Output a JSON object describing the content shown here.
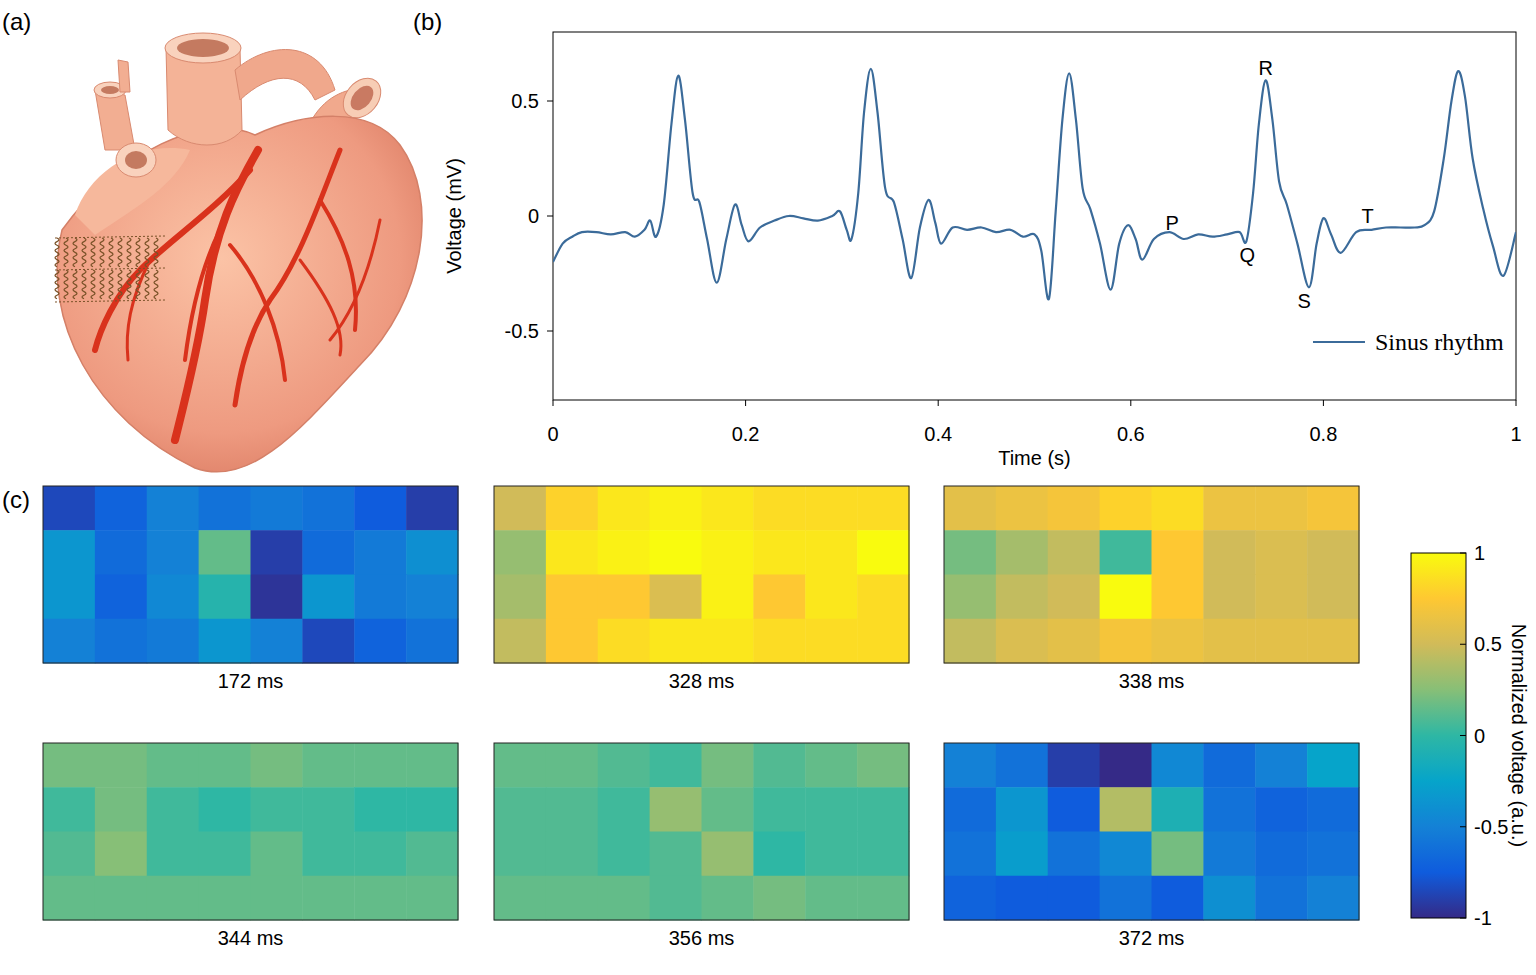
{
  "illustration": {
    "panel": "(a)"
  },
  "chart_data": [
    {
      "type": "line",
      "panel": "(b)",
      "x_label": "Time (s)",
      "y_label": "Voltage (mV)",
      "x": [
        0.0,
        0.01,
        0.02,
        0.03,
        0.045,
        0.06,
        0.075,
        0.085,
        0.095,
        0.101,
        0.107,
        0.115,
        0.123,
        0.13,
        0.137,
        0.145,
        0.152,
        0.16,
        0.17,
        0.18,
        0.189,
        0.196,
        0.203,
        0.215,
        0.23,
        0.245,
        0.26,
        0.275,
        0.29,
        0.298,
        0.305,
        0.31,
        0.317,
        0.323,
        0.33,
        0.337,
        0.345,
        0.354,
        0.363,
        0.372,
        0.381,
        0.39,
        0.397,
        0.403,
        0.415,
        0.43,
        0.445,
        0.46,
        0.475,
        0.488,
        0.5,
        0.507,
        0.515,
        0.522,
        0.529,
        0.536,
        0.543,
        0.55,
        0.558,
        0.568,
        0.579,
        0.588,
        0.597,
        0.605,
        0.612,
        0.624,
        0.64,
        0.655,
        0.67,
        0.685,
        0.7,
        0.713,
        0.72,
        0.727,
        0.733,
        0.74,
        0.747,
        0.754,
        0.762,
        0.773,
        0.785,
        0.793,
        0.8,
        0.808,
        0.818,
        0.834,
        0.85,
        0.865,
        0.88,
        0.895,
        0.905,
        0.915,
        0.925,
        0.933,
        0.94,
        0.947,
        0.955,
        0.966,
        0.976,
        0.987,
        1.0
      ],
      "series": [
        {
          "name": "Sinus rhythm",
          "color": "#3b6b9a",
          "values": [
            -0.2,
            -0.12,
            -0.09,
            -0.07,
            -0.07,
            -0.08,
            -0.07,
            -0.09,
            -0.06,
            -0.02,
            -0.09,
            0.05,
            0.4,
            0.61,
            0.42,
            0.1,
            0.06,
            -0.1,
            -0.29,
            -0.1,
            0.05,
            -0.04,
            -0.11,
            -0.05,
            -0.02,
            0.0,
            -0.01,
            -0.02,
            0.0,
            0.02,
            -0.06,
            -0.1,
            0.1,
            0.45,
            0.64,
            0.45,
            0.12,
            0.06,
            -0.1,
            -0.27,
            -0.05,
            0.07,
            -0.03,
            -0.12,
            -0.05,
            -0.06,
            -0.05,
            -0.07,
            -0.06,
            -0.09,
            -0.08,
            -0.15,
            -0.36,
            0.02,
            0.42,
            0.62,
            0.42,
            0.12,
            0.03,
            -0.12,
            -0.32,
            -0.12,
            -0.04,
            -0.1,
            -0.19,
            -0.1,
            -0.07,
            -0.1,
            -0.08,
            -0.09,
            -0.08,
            -0.07,
            -0.11,
            0.1,
            0.4,
            0.59,
            0.42,
            0.15,
            0.05,
            -0.12,
            -0.31,
            -0.12,
            -0.01,
            -0.08,
            -0.16,
            -0.07,
            -0.06,
            -0.05,
            -0.05,
            -0.05,
            -0.04,
            0.02,
            0.25,
            0.5,
            0.63,
            0.52,
            0.25,
            0.03,
            -0.13,
            -0.26,
            -0.07
          ]
        }
      ],
      "xlim": [
        0,
        1
      ],
      "xticks": [
        0,
        0.2,
        0.4,
        0.6,
        0.8,
        1
      ],
      "ylim": [
        -0.8,
        0.8
      ],
      "yticks": [
        -0.5,
        0,
        0.5
      ],
      "grid": false,
      "legend": "lower right",
      "annotations": [
        {
          "text": "P",
          "x": 0.643,
          "y": -0.03
        },
        {
          "text": "Q",
          "x": 0.721,
          "y": -0.17
        },
        {
          "text": "R",
          "x": 0.74,
          "y": 0.645
        },
        {
          "text": "S",
          "x": 0.78,
          "y": -0.37
        },
        {
          "text": "T",
          "x": 0.846,
          "y": 0.0
        }
      ]
    },
    {
      "type": "heatmap",
      "panel": "(c)",
      "colorbar_label": "Normalized voltage (a.u.)",
      "zlim": [
        -1,
        1
      ],
      "zticks": [
        -1,
        -0.5,
        0,
        0.5,
        1
      ],
      "panels": [
        {
          "title": "172 ms",
          "cells": [
            [
              -0.85,
              -0.7,
              -0.5,
              -0.6,
              -0.55,
              -0.6,
              -0.75,
              -0.9
            ],
            [
              -0.35,
              -0.65,
              -0.5,
              0.15,
              -0.9,
              -0.65,
              -0.55,
              -0.4
            ],
            [
              -0.35,
              -0.7,
              -0.45,
              -0.05,
              -0.95,
              -0.35,
              -0.55,
              -0.5
            ],
            [
              -0.5,
              -0.6,
              -0.55,
              -0.35,
              -0.5,
              -0.85,
              -0.7,
              -0.6
            ]
          ]
        },
        {
          "title": "328 ms",
          "cells": [
            [
              0.5,
              0.8,
              0.9,
              0.95,
              0.9,
              0.85,
              0.85,
              0.85
            ],
            [
              0.3,
              0.9,
              0.95,
              1.0,
              0.95,
              0.9,
              0.9,
              1.0
            ],
            [
              0.35,
              0.75,
              0.75,
              0.55,
              0.95,
              0.75,
              0.9,
              0.85
            ],
            [
              0.45,
              0.75,
              0.85,
              0.9,
              0.9,
              0.85,
              0.85,
              0.85
            ]
          ]
        },
        {
          "title": "338 ms",
          "cells": [
            [
              0.6,
              0.65,
              0.7,
              0.8,
              0.85,
              0.65,
              0.65,
              0.7
            ],
            [
              0.2,
              0.35,
              0.45,
              0.05,
              0.75,
              0.5,
              0.55,
              0.5
            ],
            [
              0.3,
              0.45,
              0.5,
              1.0,
              0.75,
              0.5,
              0.55,
              0.5
            ],
            [
              0.45,
              0.55,
              0.6,
              0.7,
              0.65,
              0.6,
              0.6,
              0.6
            ]
          ]
        },
        {
          "title": "344 ms",
          "cells": [
            [
              0.2,
              0.2,
              0.15,
              0.15,
              0.2,
              0.15,
              0.15,
              0.15
            ],
            [
              0.05,
              0.2,
              0.05,
              0.0,
              0.05,
              0.05,
              0.0,
              0.0
            ],
            [
              0.1,
              0.25,
              0.05,
              0.05,
              0.15,
              0.05,
              0.05,
              0.1
            ],
            [
              0.15,
              0.15,
              0.15,
              0.15,
              0.15,
              0.15,
              0.15,
              0.15
            ]
          ]
        },
        {
          "title": "356 ms",
          "cells": [
            [
              0.15,
              0.15,
              0.1,
              0.05,
              0.2,
              0.1,
              0.15,
              0.2
            ],
            [
              0.1,
              0.1,
              0.05,
              0.3,
              0.15,
              0.05,
              0.05,
              0.05
            ],
            [
              0.1,
              0.1,
              0.05,
              0.1,
              0.3,
              0.0,
              0.05,
              0.05
            ],
            [
              0.15,
              0.15,
              0.15,
              0.1,
              0.15,
              0.2,
              0.15,
              0.15
            ]
          ]
        },
        {
          "title": "372 ms",
          "cells": [
            [
              -0.5,
              -0.6,
              -0.9,
              -1.0,
              -0.45,
              -0.65,
              -0.5,
              -0.25
            ],
            [
              -0.65,
              -0.35,
              -0.75,
              0.4,
              -0.1,
              -0.6,
              -0.7,
              -0.65
            ],
            [
              -0.6,
              -0.3,
              -0.6,
              -0.45,
              0.2,
              -0.55,
              -0.65,
              -0.6
            ],
            [
              -0.7,
              -0.75,
              -0.75,
              -0.6,
              -0.75,
              -0.4,
              -0.6,
              -0.5
            ]
          ]
        }
      ]
    }
  ]
}
